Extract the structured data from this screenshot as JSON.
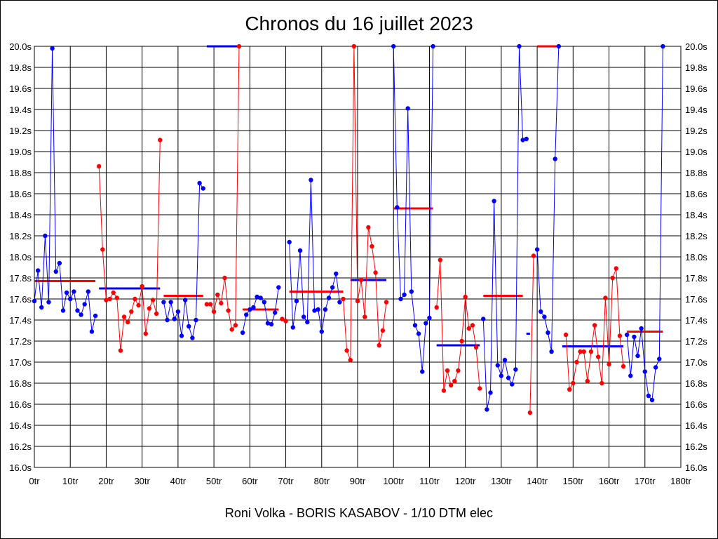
{
  "chart_data": {
    "type": "line",
    "title": "Chronos du 16 juillet 2023",
    "subtitle": "Roni Volka - BORIS KASABOV - 1/10 DTM elec",
    "grid": true,
    "xlim": [
      0,
      180
    ],
    "ylim": [
      16.0,
      20.0
    ],
    "x_tick_labels": [
      "0tr",
      "10tr",
      "20tr",
      "30tr",
      "40tr",
      "50tr",
      "60tr",
      "70tr",
      "80tr",
      "90tr",
      "100tr",
      "110tr",
      "120tr",
      "130tr",
      "140tr",
      "150tr",
      "160tr",
      "170tr",
      "180tr"
    ],
    "y_tick_labels": [
      "16.0s",
      "16.2s",
      "16.4s",
      "16.6s",
      "16.8s",
      "17.0s",
      "17.2s",
      "17.4s",
      "17.6s",
      "17.8s",
      "18.0s",
      "18.2s",
      "18.4s",
      "18.6s",
      "18.8s",
      "19.0s",
      "19.2s",
      "19.4s",
      "19.6s",
      "19.8s",
      "20.0s"
    ],
    "colors": {
      "blue": "#0000ff",
      "red": "#ff0000"
    },
    "series": [
      {
        "color": "blue",
        "x": [
          0,
          1,
          2,
          3,
          4,
          5,
          6,
          7,
          8,
          9,
          10,
          11,
          12,
          13,
          14,
          15,
          16,
          17
        ],
        "y": [
          17.58,
          17.87,
          17.52,
          18.2,
          17.57,
          19.98,
          17.86,
          17.94,
          17.49,
          17.66,
          17.6,
          17.67,
          17.49,
          17.45,
          17.55,
          17.67,
          17.29,
          17.44
        ],
        "avg": 17.77,
        "avg_x": [
          0,
          17
        ]
      },
      {
        "color": "red",
        "x": [
          18,
          19,
          20,
          21,
          22,
          23,
          24,
          25,
          26,
          27,
          28,
          29,
          30,
          31,
          32,
          33,
          34,
          35
        ],
        "y": [
          18.86,
          18.07,
          17.59,
          17.6,
          17.66,
          17.61,
          17.11,
          17.43,
          17.38,
          17.48,
          17.6,
          17.54,
          17.72,
          17.27,
          17.51,
          17.59,
          17.46,
          19.11
        ],
        "avg": 17.7,
        "avg_x": [
          18,
          35
        ]
      },
      {
        "color": "blue",
        "x": [
          36,
          37,
          38,
          39,
          40,
          41,
          42,
          43,
          44,
          45,
          46,
          47
        ],
        "y": [
          17.57,
          17.4,
          17.57,
          17.41,
          17.48,
          17.25,
          17.59,
          17.34,
          17.23,
          17.4,
          18.7,
          18.65
        ],
        "avg": 17.63,
        "avg_x": [
          36,
          47
        ]
      },
      {
        "color": "red",
        "x": [
          48,
          49,
          50,
          51,
          52,
          53,
          54,
          55,
          56,
          57
        ],
        "y": [
          17.55,
          17.55,
          17.48,
          17.64,
          17.56,
          17.8,
          17.49,
          17.31,
          17.35,
          20.0
        ],
        "avg": 20.0,
        "avg_x": [
          48,
          57
        ]
      },
      {
        "color": "blue",
        "x": [
          58,
          59,
          60,
          61,
          62,
          63,
          64,
          65,
          66,
          67,
          68
        ],
        "y": [
          17.28,
          17.45,
          17.5,
          17.52,
          17.62,
          17.61,
          17.57,
          17.37,
          17.36,
          17.47,
          17.71
        ],
        "avg": 17.5,
        "avg_x": [
          58,
          68
        ]
      },
      {
        "color": "red",
        "x": [
          69,
          70
        ],
        "y": [
          17.41,
          17.39
        ],
        "avg": null,
        "avg_x": []
      },
      {
        "color": "blue",
        "x": [
          71,
          72,
          73,
          74,
          75,
          76,
          77,
          78,
          79,
          80,
          81,
          82,
          83,
          84,
          85
        ],
        "y": [
          18.14,
          17.33,
          17.58,
          18.06,
          17.43,
          17.38,
          18.73,
          17.49,
          17.5,
          17.29,
          17.5,
          17.61,
          17.71,
          17.84,
          17.57
        ],
        "avg": 17.67,
        "avg_x": [
          71,
          86
        ]
      },
      {
        "color": "red",
        "x": [
          86,
          87,
          88,
          89,
          90,
          91,
          92,
          93,
          94,
          95,
          96,
          97,
          98
        ],
        "y": [
          17.6,
          17.11,
          17.02,
          20.0,
          17.58,
          17.78,
          17.43,
          18.28,
          18.1,
          17.85,
          17.16,
          17.3,
          17.57
        ],
        "avg": 17.67,
        "avg_x": [
          71,
          86
        ]
      },
      {
        "color": "blue",
        "x": [
          100,
          101,
          102,
          103,
          104,
          105,
          106,
          107,
          108,
          109,
          110,
          111
        ],
        "y": [
          20.0,
          18.47,
          17.6,
          17.64,
          19.41,
          17.67,
          17.35,
          17.27,
          16.91,
          17.37,
          17.42,
          20.0
        ],
        "avg": 17.78,
        "avg_x": [
          88,
          98
        ]
      },
      {
        "color": "red",
        "x": [
          112,
          113,
          114,
          115,
          116,
          117,
          118,
          119,
          120,
          121,
          122,
          123,
          124
        ],
        "y": [
          17.52,
          17.97,
          16.73,
          16.92,
          16.78,
          16.82,
          16.92,
          17.2,
          17.62,
          17.32,
          17.35,
          17.14,
          16.75
        ],
        "avg": 18.46,
        "avg_x": [
          100,
          111
        ]
      },
      {
        "color": "blue",
        "x": [
          125,
          126,
          127,
          128,
          129,
          130,
          131,
          132,
          133,
          134,
          135,
          136,
          137
        ],
        "y": [
          17.41,
          16.55,
          16.71,
          18.53,
          16.97,
          16.87,
          17.02,
          16.85,
          16.79,
          16.93,
          20.0,
          19.11,
          19.12
        ],
        "avg": 17.16,
        "avg_x": [
          112,
          124
        ]
      },
      {
        "color": "red",
        "x": [
          138,
          139
        ],
        "y": [
          16.52,
          18.01
        ],
        "avg": 17.63,
        "avg_x": [
          125,
          136
        ]
      },
      {
        "color": "blue",
        "x": [
          140,
          141,
          142,
          143,
          144,
          145,
          146
        ],
        "y": [
          18.07,
          17.48,
          17.43,
          17.28,
          17.1,
          18.93,
          20.0
        ],
        "avg": 20.0,
        "avg_x": [
          140,
          146
        ]
      },
      {
        "color": "red",
        "x": [
          148,
          149,
          150,
          151,
          152,
          153,
          154,
          155,
          156,
          157,
          158,
          159,
          160,
          161,
          162,
          163,
          164
        ],
        "y": [
          17.26,
          16.74,
          16.8,
          17.0,
          17.1,
          17.1,
          16.82,
          17.1,
          17.35,
          17.05,
          16.8,
          17.61,
          16.98,
          17.8,
          17.89,
          17.25,
          16.96
        ],
        "avg": 17.15,
        "avg_x": [
          147,
          164
        ]
      },
      {
        "color": "blue",
        "x": [
          165,
          166,
          167,
          168,
          169,
          170,
          171,
          172,
          173,
          174,
          175
        ],
        "y": [
          17.26,
          16.87,
          17.24,
          17.06,
          17.32,
          16.91,
          16.68,
          16.64,
          16.95,
          17.03,
          20.0
        ],
        "avg": 17.29,
        "avg_x": [
          165,
          175
        ]
      }
    ],
    "averages": [
      {
        "color": "red",
        "y": 17.77,
        "x0": 0,
        "x1": 17
      },
      {
        "color": "blue",
        "y": 17.7,
        "x0": 18,
        "x1": 35
      },
      {
        "color": "red",
        "y": 17.63,
        "x0": 36,
        "x1": 47
      },
      {
        "color": "blue",
        "y": 20.0,
        "x0": 48,
        "x1": 57
      },
      {
        "color": "red",
        "y": 17.5,
        "x0": 58,
        "x1": 68
      },
      {
        "color": "red",
        "y": 17.67,
        "x0": 71,
        "x1": 86
      },
      {
        "color": "blue",
        "y": 17.78,
        "x0": 88,
        "x1": 98
      },
      {
        "color": "red",
        "y": 18.46,
        "x0": 100,
        "x1": 111
      },
      {
        "color": "blue",
        "y": 17.16,
        "x0": 112,
        "x1": 124
      },
      {
        "color": "red",
        "y": 17.63,
        "x0": 125,
        "x1": 136
      },
      {
        "color": "blue",
        "y": 17.27,
        "x0": 137,
        "x1": 138
      },
      {
        "color": "red",
        "y": 20.0,
        "x0": 140,
        "x1": 146
      },
      {
        "color": "blue",
        "y": 17.15,
        "x0": 147,
        "x1": 164
      },
      {
        "color": "red",
        "y": 17.29,
        "x0": 165,
        "x1": 175
      }
    ]
  }
}
